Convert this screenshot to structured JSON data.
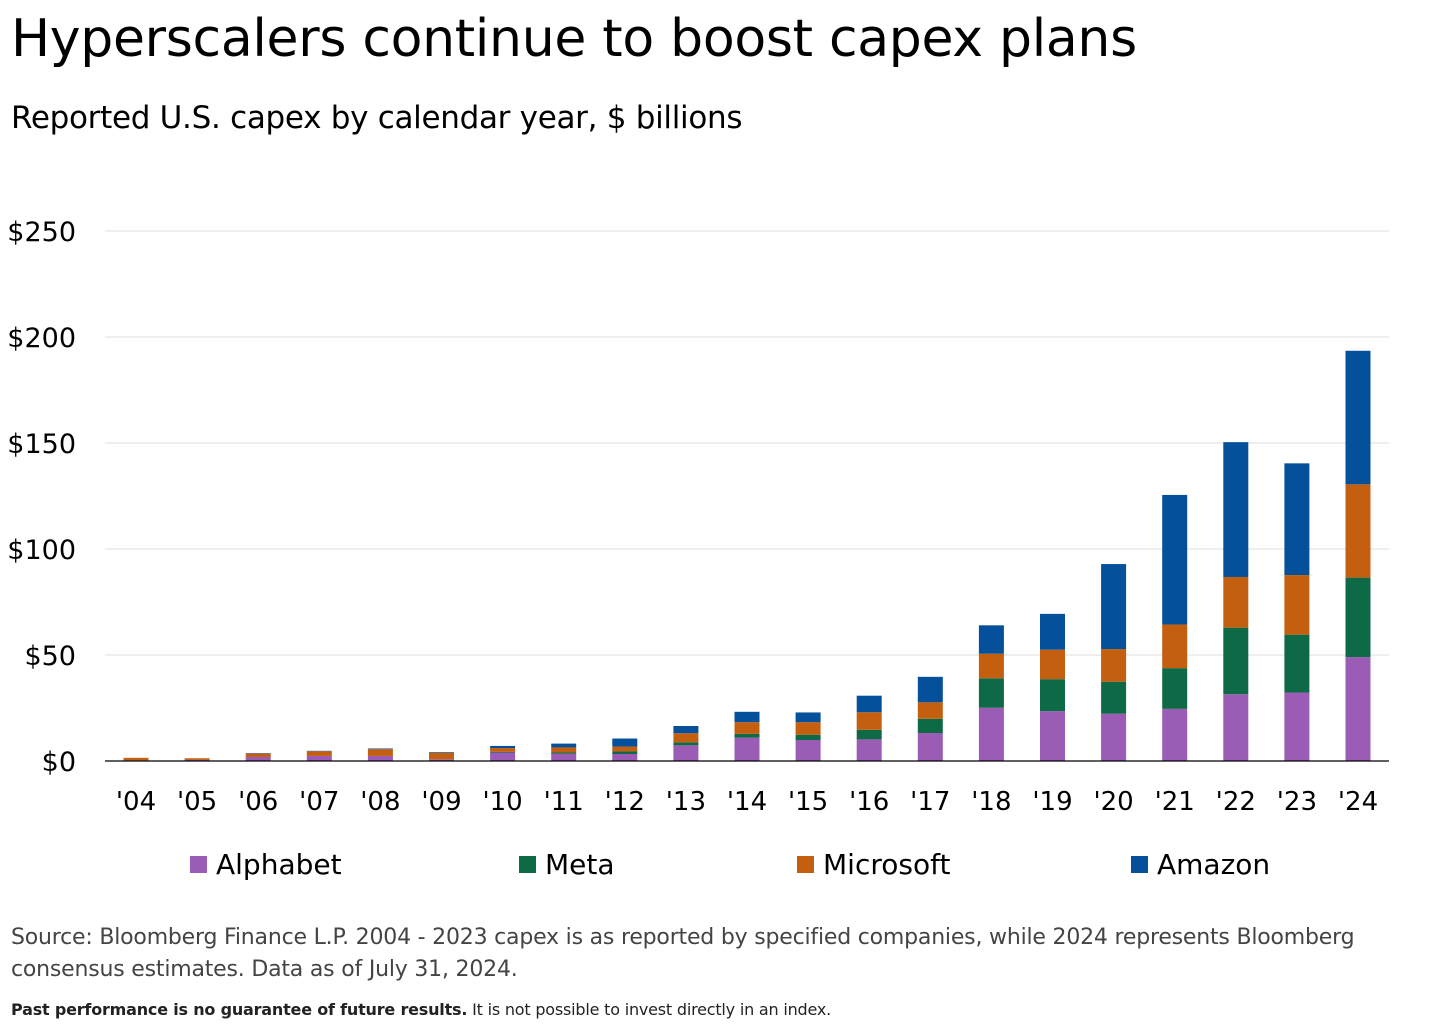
{
  "chart_data": {
    "type": "bar",
    "stacked": true,
    "title": "Hyperscalers continue to boost capex plans",
    "subtitle": "Reported U.S. capex by calendar year, $ billions",
    "categories": [
      "'04",
      "'05",
      "'06",
      "'07",
      "'08",
      "'09",
      "'10",
      "'11",
      "'12",
      "'13",
      "'14",
      "'15",
      "'16",
      "'17",
      "'18",
      "'19",
      "'20",
      "'21",
      "'22",
      "'23",
      "'24"
    ],
    "series": [
      {
        "name": "Alphabet",
        "color": "#9a5cb4",
        "values": [
          0.3,
          0.5,
          1.9,
          2.4,
          2.4,
          0.8,
          4.0,
          3.4,
          3.3,
          7.4,
          11.0,
          9.9,
          10.2,
          13.2,
          25.1,
          23.5,
          22.3,
          24.6,
          31.5,
          32.3,
          49.0
        ]
      },
      {
        "name": "Meta",
        "color": "#0e6a46",
        "values": [
          0.0,
          0.0,
          0.0,
          0.0,
          0.0,
          0.0,
          0.3,
          0.6,
          1.2,
          1.4,
          1.8,
          2.5,
          4.5,
          6.7,
          13.9,
          15.1,
          15.1,
          19.2,
          31.4,
          27.3,
          37.5
        ]
      },
      {
        "name": "Microsoft",
        "color": "#c45f10",
        "values": [
          1.2,
          0.8,
          1.6,
          2.2,
          3.2,
          3.1,
          1.8,
          2.4,
          2.3,
          4.3,
          5.5,
          5.9,
          8.3,
          7.8,
          11.6,
          13.9,
          15.4,
          20.6,
          23.9,
          28.1,
          44.0
        ]
      },
      {
        "name": "Amazon",
        "color": "#04509a",
        "values": [
          0.0,
          0.0,
          0.2,
          0.2,
          0.3,
          0.3,
          1.0,
          1.8,
          3.8,
          3.4,
          4.9,
          4.6,
          7.8,
          12.0,
          13.4,
          16.9,
          40.1,
          61.1,
          63.6,
          52.7,
          63.0
        ]
      }
    ],
    "ylim": [
      0,
      250
    ],
    "yticks": [
      0,
      50,
      100,
      150,
      200,
      250
    ],
    "ytick_labels": [
      "$0",
      "$50",
      "$100",
      "$150",
      "$200",
      "$250"
    ],
    "xlabel": "",
    "ylabel": "",
    "grid": true,
    "legend_position": "bottom"
  },
  "footer": {
    "source": "Source: Bloomberg Finance L.P. 2004 - 2023 capex is as reported by specified companies, while 2024 represents Bloomberg consensus estimates. Data as of July 31, 2024.",
    "disclaimer_bold": "Past performance is no guarantee of future results.",
    "disclaimer_rest": " It is not possible to invest directly in an index."
  }
}
